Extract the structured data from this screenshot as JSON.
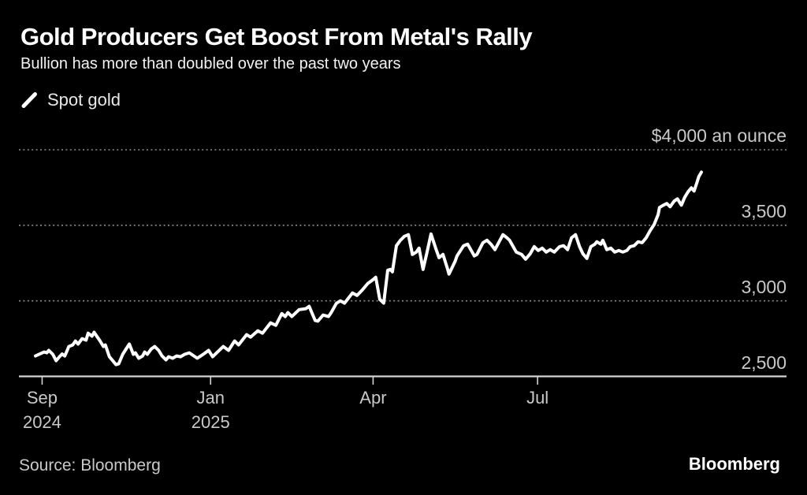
{
  "header": {
    "title": "Gold Producers Get Boost From Metal's Rally",
    "subtitle": "Bullion has more than doubled over the past two years"
  },
  "legend": {
    "items": [
      {
        "label": "Spot gold",
        "marker": "line-slash-icon",
        "color": "#ffffff"
      }
    ]
  },
  "footer": {
    "source": "Source: Bloomberg",
    "brand": "Bloomberg"
  },
  "colors": {
    "background": "#000000",
    "line": "#ffffff",
    "grid": "#8c8c8c",
    "axis": "#d4d4d4",
    "labels": "#c9c9c9",
    "title": "#ffffff"
  },
  "chart_data": {
    "type": "line",
    "title": "Gold Producers Get Boost From Metal's Rally",
    "subtitle": "Bullion has more than doubled over the past two years",
    "unit": "$ an ounce",
    "grid": "horizontal dotted",
    "legend_position": "top-left",
    "ylim": [
      2500,
      4000
    ],
    "y_ticks": [
      {
        "value": 2500,
        "label": "2,500"
      },
      {
        "value": 3000,
        "label": "3,000"
      },
      {
        "value": 3500,
        "label": "3,500"
      },
      {
        "value": 4000,
        "label": "$4,000 an ounce"
      }
    ],
    "x_ticks": [
      {
        "label": "Sep",
        "sublabel": "2024",
        "t": 0.01
      },
      {
        "label": "Jan",
        "sublabel": "2025",
        "t": 0.263
      },
      {
        "label": "Apr",
        "sublabel": "",
        "t": 0.507
      },
      {
        "label": "Jul",
        "sublabel": "",
        "t": 0.754
      }
    ],
    "series": [
      {
        "name": "Spot gold",
        "color": "#ffffff",
        "points": [
          [
            0.0,
            2635
          ],
          [
            0.013,
            2661
          ],
          [
            0.017,
            2656
          ],
          [
            0.02,
            2672
          ],
          [
            0.026,
            2646
          ],
          [
            0.031,
            2604
          ],
          [
            0.036,
            2630
          ],
          [
            0.04,
            2648
          ],
          [
            0.044,
            2635
          ],
          [
            0.047,
            2665
          ],
          [
            0.05,
            2698
          ],
          [
            0.056,
            2708
          ],
          [
            0.06,
            2734
          ],
          [
            0.064,
            2714
          ],
          [
            0.07,
            2750
          ],
          [
            0.076,
            2740
          ],
          [
            0.079,
            2786
          ],
          [
            0.085,
            2766
          ],
          [
            0.088,
            2792
          ],
          [
            0.093,
            2760
          ],
          [
            0.097,
            2734
          ],
          [
            0.102,
            2698
          ],
          [
            0.105,
            2708
          ],
          [
            0.111,
            2630
          ],
          [
            0.115,
            2609
          ],
          [
            0.121,
            2578
          ],
          [
            0.125,
            2583
          ],
          [
            0.131,
            2646
          ],
          [
            0.137,
            2688
          ],
          [
            0.141,
            2714
          ],
          [
            0.147,
            2646
          ],
          [
            0.15,
            2656
          ],
          [
            0.155,
            2620
          ],
          [
            0.161,
            2635
          ],
          [
            0.164,
            2661
          ],
          [
            0.168,
            2646
          ],
          [
            0.174,
            2682
          ],
          [
            0.179,
            2698
          ],
          [
            0.185,
            2672
          ],
          [
            0.19,
            2635
          ],
          [
            0.196,
            2609
          ],
          [
            0.2,
            2630
          ],
          [
            0.206,
            2620
          ],
          [
            0.212,
            2635
          ],
          [
            0.218,
            2630
          ],
          [
            0.224,
            2646
          ],
          [
            0.231,
            2656
          ],
          [
            0.243,
            2620
          ],
          [
            0.252,
            2646
          ],
          [
            0.26,
            2672
          ],
          [
            0.266,
            2630
          ],
          [
            0.282,
            2698
          ],
          [
            0.29,
            2672
          ],
          [
            0.299,
            2734
          ],
          [
            0.305,
            2708
          ],
          [
            0.317,
            2776
          ],
          [
            0.323,
            2760
          ],
          [
            0.334,
            2802
          ],
          [
            0.341,
            2786
          ],
          [
            0.353,
            2854
          ],
          [
            0.361,
            2838
          ],
          [
            0.37,
            2916
          ],
          [
            0.375,
            2896
          ],
          [
            0.379,
            2922
          ],
          [
            0.385,
            2896
          ],
          [
            0.396,
            2942
          ],
          [
            0.406,
            2948
          ],
          [
            0.411,
            2964
          ],
          [
            0.42,
            2870
          ],
          [
            0.424,
            2865
          ],
          [
            0.432,
            2906
          ],
          [
            0.44,
            2896
          ],
          [
            0.444,
            2922
          ],
          [
            0.452,
            2984
          ],
          [
            0.458,
            3000
          ],
          [
            0.464,
            2984
          ],
          [
            0.476,
            3052
          ],
          [
            0.483,
            3036
          ],
          [
            0.491,
            3073
          ],
          [
            0.499,
            3115
          ],
          [
            0.507,
            3140
          ],
          [
            0.511,
            3156
          ],
          [
            0.517,
            3010
          ],
          [
            0.523,
            2985
          ],
          [
            0.529,
            3203
          ],
          [
            0.533,
            3208
          ],
          [
            0.536,
            3192
          ],
          [
            0.542,
            3365
          ],
          [
            0.548,
            3401
          ],
          [
            0.554,
            3427
          ],
          [
            0.56,
            3438
          ],
          [
            0.566,
            3307
          ],
          [
            0.572,
            3323
          ],
          [
            0.576,
            3349
          ],
          [
            0.582,
            3208
          ],
          [
            0.588,
            3323
          ],
          [
            0.594,
            3443
          ],
          [
            0.601,
            3349
          ],
          [
            0.606,
            3286
          ],
          [
            0.612,
            3307
          ],
          [
            0.619,
            3208
          ],
          [
            0.621,
            3177
          ],
          [
            0.63,
            3260
          ],
          [
            0.633,
            3297
          ],
          [
            0.643,
            3365
          ],
          [
            0.649,
            3375
          ],
          [
            0.659,
            3297
          ],
          [
            0.663,
            3307
          ],
          [
            0.672,
            3385
          ],
          [
            0.678,
            3401
          ],
          [
            0.684,
            3375
          ],
          [
            0.69,
            3339
          ],
          [
            0.702,
            3438
          ],
          [
            0.708,
            3417
          ],
          [
            0.712,
            3401
          ],
          [
            0.722,
            3323
          ],
          [
            0.73,
            3307
          ],
          [
            0.736,
            3276
          ],
          [
            0.743,
            3312
          ],
          [
            0.749,
            3359
          ],
          [
            0.755,
            3333
          ],
          [
            0.761,
            3349
          ],
          [
            0.767,
            3323
          ],
          [
            0.773,
            3339
          ],
          [
            0.779,
            3323
          ],
          [
            0.787,
            3359
          ],
          [
            0.793,
            3365
          ],
          [
            0.799,
            3339
          ],
          [
            0.805,
            3417
          ],
          [
            0.811,
            3438
          ],
          [
            0.817,
            3359
          ],
          [
            0.822,
            3312
          ],
          [
            0.828,
            3281
          ],
          [
            0.834,
            3359
          ],
          [
            0.84,
            3375
          ],
          [
            0.843,
            3391
          ],
          [
            0.849,
            3375
          ],
          [
            0.852,
            3401
          ],
          [
            0.858,
            3339
          ],
          [
            0.864,
            3349
          ],
          [
            0.87,
            3323
          ],
          [
            0.876,
            3333
          ],
          [
            0.882,
            3323
          ],
          [
            0.888,
            3333
          ],
          [
            0.893,
            3359
          ],
          [
            0.899,
            3365
          ],
          [
            0.905,
            3391
          ],
          [
            0.911,
            3385
          ],
          [
            0.917,
            3417
          ],
          [
            0.923,
            3464
          ],
          [
            0.929,
            3505
          ],
          [
            0.935,
            3571
          ],
          [
            0.937,
            3618
          ],
          [
            0.943,
            3633
          ],
          [
            0.948,
            3644
          ],
          [
            0.953,
            3623
          ],
          [
            0.959,
            3660
          ],
          [
            0.964,
            3675
          ],
          [
            0.97,
            3633
          ],
          [
            0.975,
            3686
          ],
          [
            0.98,
            3722
          ],
          [
            0.985,
            3748
          ],
          [
            0.989,
            3727
          ],
          [
            0.993,
            3779
          ],
          [
            0.996,
            3821
          ],
          [
            1.0,
            3852
          ]
        ]
      }
    ]
  }
}
